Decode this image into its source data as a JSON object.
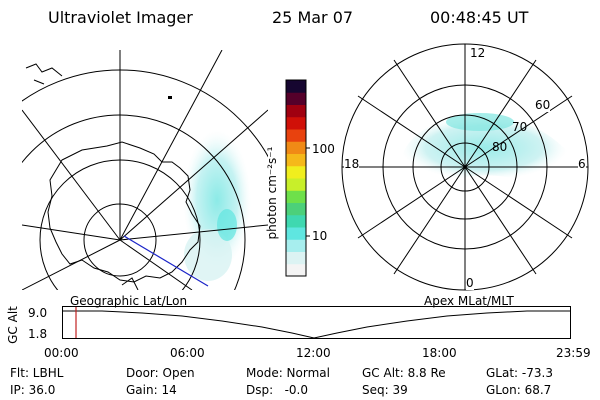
{
  "header": {
    "title": "Ultraviolet Imager",
    "date": "25 Mar 07",
    "time": "00:48:45 UT"
  },
  "colorbar": {
    "unit_label": "photon cm⁻²s⁻¹",
    "ticks": [
      "100",
      "10"
    ],
    "colors": [
      "#f4f4f4",
      "#dcf3f3",
      "#a7eeee",
      "#5fe6e0",
      "#3fd8b0",
      "#4cd07a",
      "#6ee04a",
      "#c8ef2a",
      "#f0ee1e",
      "#f5b81a",
      "#f08a16",
      "#e8420e",
      "#d01008",
      "#a00010",
      "#55002a",
      "#160630"
    ]
  },
  "geo_panel": {
    "label": "Geographic Lat/Lon"
  },
  "apex_panel": {
    "label": "Apex MLat/MLT",
    "mlt_labels": [
      "12",
      "18",
      "6",
      "0"
    ],
    "lat_labels": [
      "60",
      "70",
      "80"
    ]
  },
  "altitude_plot": {
    "ylabel": "GC Alt",
    "y_ticks": [
      "9.0",
      "1.8"
    ],
    "x_ticks": [
      "00:00",
      "06:00",
      "12:00",
      "18:00",
      "23:59"
    ]
  },
  "info": {
    "filter": "Flt: LBHL",
    "ip": "IP: 36.0",
    "door": "Door: Open",
    "gain": "Gain: 14",
    "mode": "Mode: Normal",
    "dsp": "Dsp:   -0.0",
    "gc_alt": "GC Alt: 8.8 Re",
    "seq": "Seq: 39",
    "glat": "GLat: -73.3",
    "glon": "GLon: 68.7"
  }
}
